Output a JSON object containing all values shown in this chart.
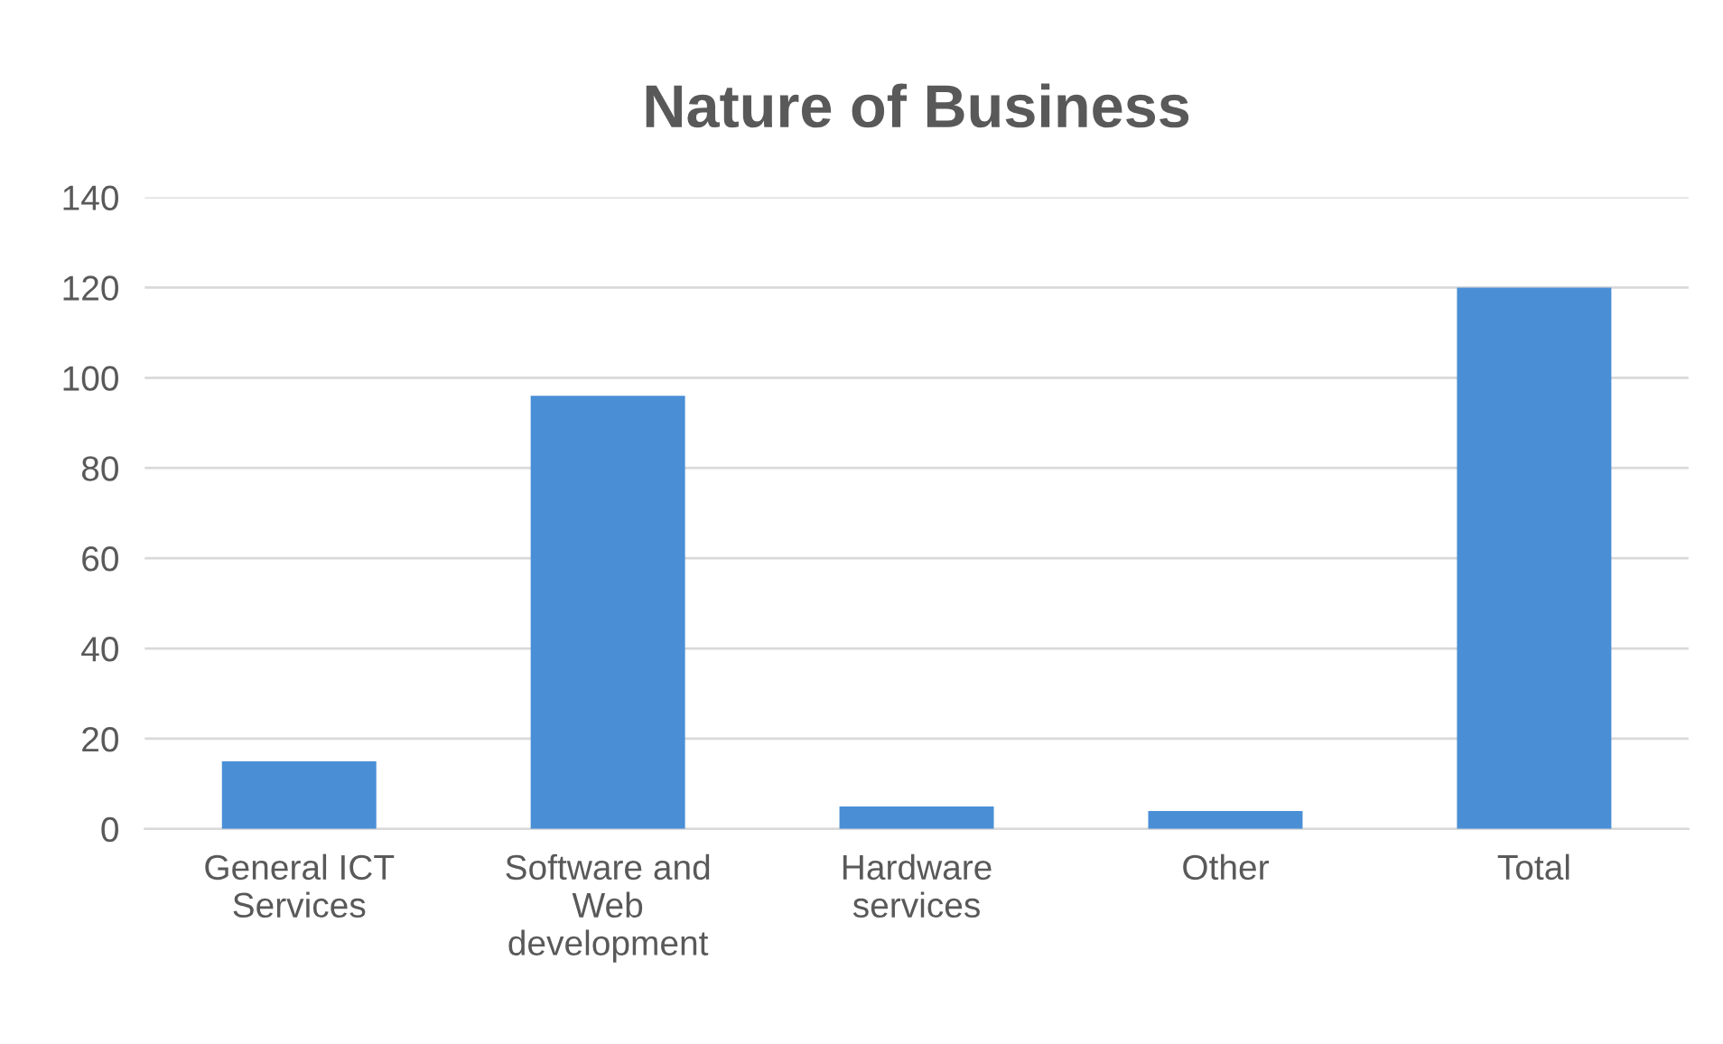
{
  "chart_data": {
    "type": "bar",
    "title": "Nature of Business",
    "categories": [
      "General ICT\nServices",
      "Software and\nWeb\ndevelopment",
      "Hardware\nservices",
      "Other",
      "Total"
    ],
    "values": [
      15,
      96,
      5,
      4,
      120
    ],
    "color": "#4a8fd6",
    "ylim": [
      0,
      140
    ],
    "yticks": [
      0,
      20,
      40,
      60,
      80,
      100,
      120,
      140
    ],
    "grid": "y",
    "legend": false
  }
}
